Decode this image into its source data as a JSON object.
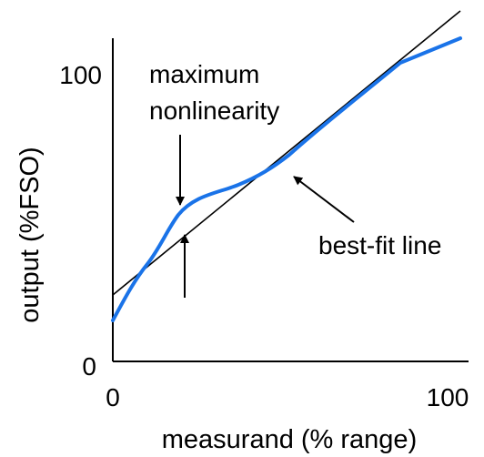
{
  "figure": {
    "ylabel": "output (%FSO)",
    "xlabel": "measurand (% range)",
    "x_ticks": [
      "0",
      "100"
    ],
    "y_ticks": [
      "0",
      "100"
    ],
    "annotation_nonlinearity": [
      "maximum",
      "nonlinearity"
    ],
    "annotation_bestfit": "best-fit line",
    "colors": {
      "curve": "#1a73e8",
      "line": "#000000",
      "axes": "#000000"
    }
  }
}
